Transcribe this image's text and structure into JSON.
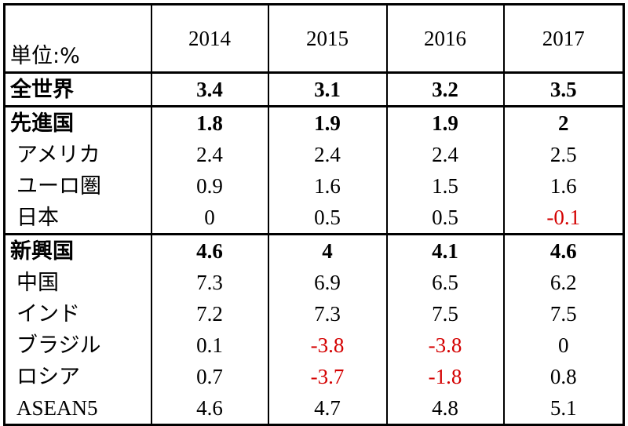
{
  "chart_data": {
    "type": "table",
    "unit_label": "単位:%",
    "columns": [
      "2014",
      "2015",
      "2016",
      "2017"
    ],
    "rows": [
      {
        "label": "全世界",
        "values": [
          "3.4",
          "3.1",
          "3.2",
          "3.5"
        ],
        "bold": true,
        "group_start": true
      },
      {
        "label": "先進国",
        "values": [
          "1.8",
          "1.9",
          "1.9",
          "2"
        ],
        "bold": true,
        "group_start": true
      },
      {
        "label": "アメリカ",
        "values": [
          "2.4",
          "2.4",
          "2.4",
          "2.5"
        ]
      },
      {
        "label": "ユーロ圏",
        "values": [
          "0.9",
          "1.6",
          "1.5",
          "1.6"
        ]
      },
      {
        "label": "日本",
        "values": [
          "0",
          "0.5",
          "0.5",
          "-0.1"
        ]
      },
      {
        "label": "新興国",
        "values": [
          "4.6",
          "4",
          "4.1",
          "4.6"
        ],
        "bold": true,
        "group_start": true
      },
      {
        "label": "中国",
        "values": [
          "7.3",
          "6.9",
          "6.5",
          "6.2"
        ]
      },
      {
        "label": "インド",
        "values": [
          "7.2",
          "7.3",
          "7.5",
          "7.5"
        ]
      },
      {
        "label": "ブラジル",
        "values": [
          "0.1",
          "-3.8",
          "-3.8",
          "0"
        ]
      },
      {
        "label": "ロシア",
        "values": [
          "0.7",
          "-3.7",
          "-1.8",
          "0.8"
        ]
      },
      {
        "label": "ASEAN5",
        "values": [
          "4.6",
          "4.7",
          "4.8",
          "5.1"
        ]
      }
    ],
    "negative_color": "#d40000"
  }
}
